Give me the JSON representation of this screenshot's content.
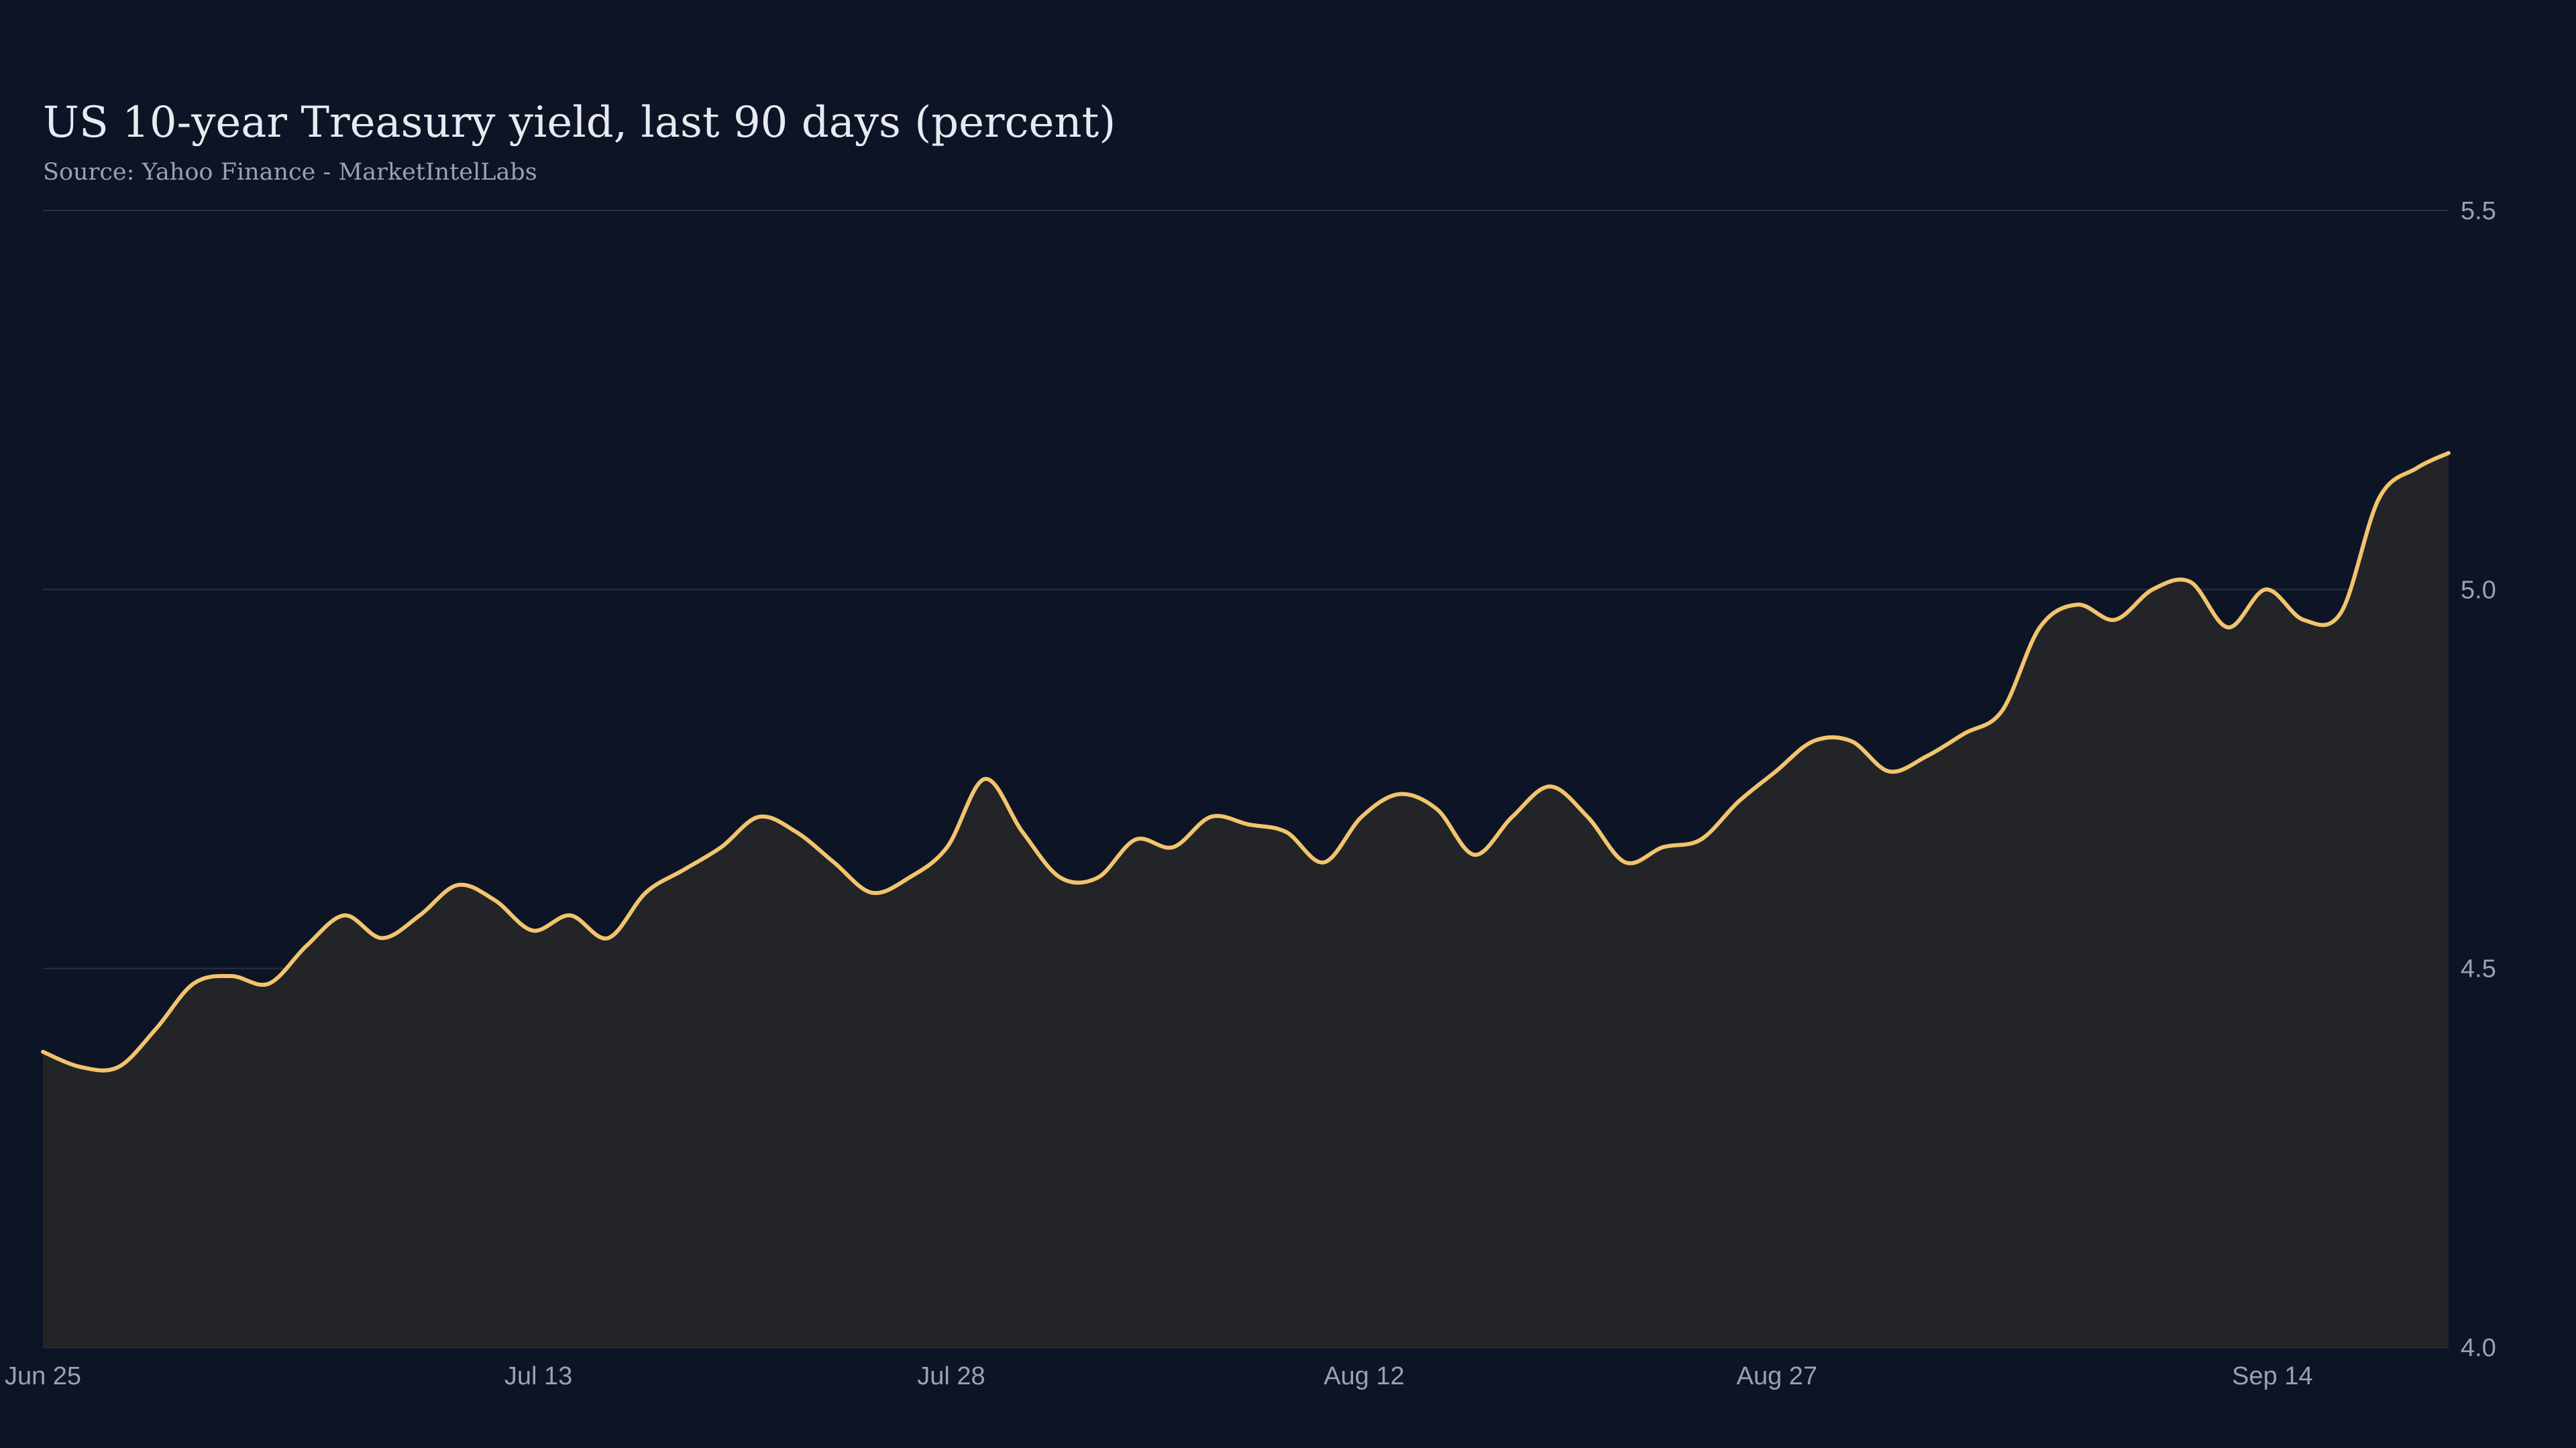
{
  "chart_data": {
    "type": "area",
    "title": "US 10-year Treasury yield, last 90 days (percent)",
    "subtitle": "Source: Yahoo Finance - MarketIntelLabs",
    "x_tick_labels": [
      "Jun 25",
      "Jul 13",
      "Jul 28",
      "Aug 12",
      "Aug 27",
      "Sep 14"
    ],
    "x_tick_days": [
      0,
      18,
      33,
      48,
      63,
      81
    ],
    "y_ticks": [
      4.0,
      4.5,
      5.0,
      5.5
    ],
    "y_tick_labels": [
      "4.0",
      "4.5",
      "5.0",
      "5.5"
    ],
    "ylim": [
      4.0,
      5.5
    ],
    "xlim_days": [
      0,
      87.4
    ],
    "grid": "horizontal",
    "line_color": "#f2c46d",
    "fill_color": "#222428",
    "background": "#0d1426",
    "series": [
      {
        "x": [
          0,
          1.37,
          2.74,
          4.1,
          5.47,
          6.84,
          8.21,
          9.58,
          10.95,
          12.32,
          13.69,
          15.06,
          16.42,
          17.79,
          19.16,
          20.53,
          21.9,
          23.27,
          24.64,
          26.01,
          27.37,
          28.74,
          30.11,
          31.48,
          32.85,
          34.22,
          35.59,
          36.96,
          38.33,
          39.69,
          41.06,
          42.43,
          43.8,
          45.17,
          46.54,
          47.91,
          49.28,
          50.65,
          52.01,
          53.38,
          54.75,
          56.12,
          57.49,
          58.86,
          60.23,
          61.6,
          62.96,
          64.33,
          65.7,
          67.07,
          68.44,
          69.81,
          71.18,
          72.55,
          73.92,
          75.28,
          76.65,
          78.02,
          79.39,
          80.76,
          82.13,
          83.5,
          84.87,
          86.24,
          87.4
        ],
        "values": [
          4.39,
          4.37,
          4.37,
          4.42,
          4.48,
          4.49,
          4.48,
          4.53,
          4.57,
          4.54,
          4.57,
          4.61,
          4.59,
          4.55,
          4.57,
          4.54,
          4.6,
          4.63,
          4.66,
          4.7,
          4.68,
          4.64,
          4.6,
          4.62,
          4.66,
          4.75,
          4.68,
          4.62,
          4.62,
          4.67,
          4.66,
          4.7,
          4.69,
          4.68,
          4.64,
          4.7,
          4.73,
          4.71,
          4.65,
          4.7,
          4.74,
          4.7,
          4.64,
          4.66,
          4.67,
          4.72,
          4.76,
          4.8,
          4.8,
          4.76,
          4.78,
          4.81,
          4.84,
          4.95,
          4.98,
          4.96,
          5.0,
          5.01,
          4.95,
          5.0,
          4.96,
          4.97,
          5.12,
          5.16,
          5.18
        ]
      }
    ]
  }
}
